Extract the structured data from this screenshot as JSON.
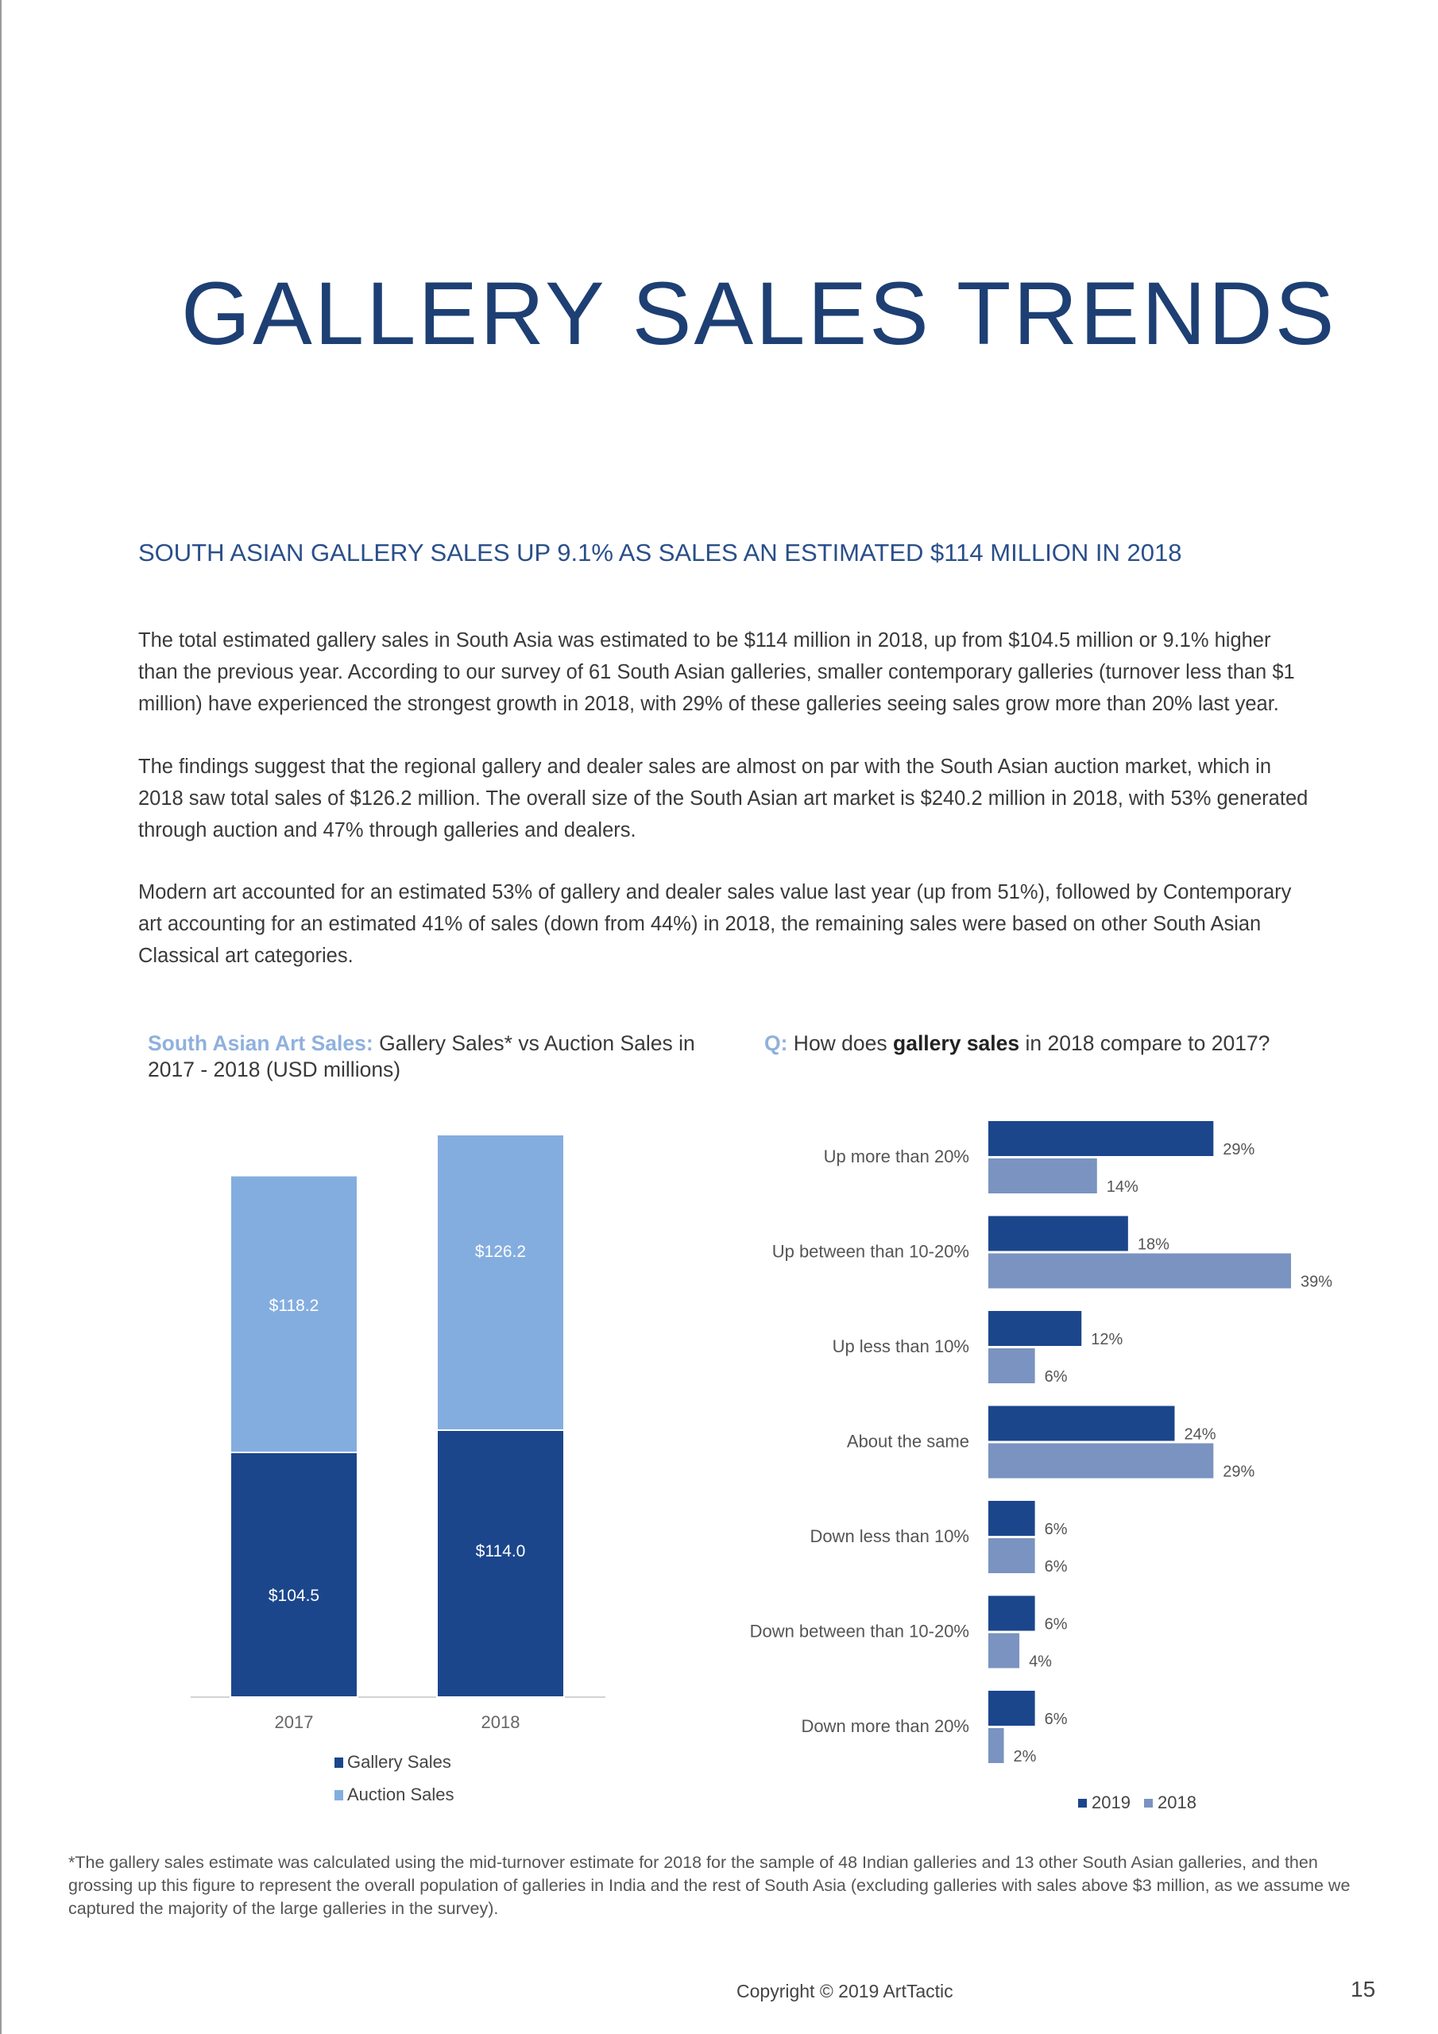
{
  "page": {
    "title": "GALLERY SALES TRENDS",
    "subheading": "SOUTH ASIAN GALLERY SALES UP 9.1% AS SALES AN ESTIMATED $114 MILLION IN 2018",
    "paragraphs": [
      "The total estimated gallery sales in South Asia was estimated to be $114 million in 2018, up from $104.5 million or 9.1% higher than the previous year. According to our survey of 61 South Asian galleries, smaller contemporary galleries (turnover less than $1 million) have experienced the strongest growth in 2018, with 29% of these galleries seeing sales grow more than 20% last year.",
      "The findings suggest that the regional gallery and dealer sales are almost on par with the South Asian auction market, which in 2018 saw total sales of $126.2 million. The overall size of the South Asian art market is $240.2 million in 2018, with 53% generated through auction and 47% through galleries and dealers.",
      "Modern art accounted for an estimated 53% of gallery and dealer sales value last year (up from 51%), followed by Contemporary art accounting for an estimated 41% of sales (down from 44%) in 2018, the remaining sales were based on other South Asian Classical art categories."
    ],
    "footnote": "*The gallery sales estimate was calculated using the mid-turnover estimate for 2018 for the sample of 48 Indian galleries and 13 other South Asian galleries, and then grossing up this figure to represent the overall population of galleries in India and the rest of South Asia (excluding galleries with sales above $3 million, as we assume we captured the majority of the large galleries in the survey).",
    "copyright": "Copyright © 2019 ArtTactic",
    "page_number": "15"
  },
  "chart_titles": {
    "left_accent": "South Asian Art Sales:",
    "left_rest": " Gallery Sales* vs Auction Sales in 2017 - 2018  (USD millions)",
    "right_accent": "Q:",
    "right_pre": " How does ",
    "right_bold": "gallery sales",
    "right_post": " in 2018 compare to 2017?"
  },
  "colors": {
    "title": "#1d3f73",
    "gallery_sales": "#1b468c",
    "auction_sales": "#84addf",
    "series_2019": "#1b468c",
    "series_2018": "#7a93c0"
  },
  "chart_data": [
    {
      "type": "bar",
      "stacked": true,
      "categories": [
        "2017",
        "2018"
      ],
      "series": [
        {
          "name": "Gallery Sales",
          "values": [
            104.5,
            114.0
          ],
          "labels": [
            "$104.5",
            "$114.0"
          ]
        },
        {
          "name": "Auction Sales",
          "values": [
            118.2,
            126.2
          ],
          "labels": [
            "$118.2",
            "$126.2"
          ]
        }
      ],
      "ylim": [
        0,
        240.2
      ],
      "legend": "bottom"
    },
    {
      "type": "bar",
      "orientation": "horizontal",
      "categories": [
        "Up more than 20%",
        "Up between than 10-20%",
        "Up less than 10%",
        "About the same",
        "Down less than 10%",
        "Down between than 10-20%",
        "Down more than 20%"
      ],
      "series": [
        {
          "name": "2019",
          "values": [
            29,
            18,
            12,
            24,
            6,
            6,
            6
          ],
          "labels": [
            "29%",
            "18%",
            "12%",
            "24%",
            "6%",
            "6%",
            "6%"
          ]
        },
        {
          "name": "2018",
          "values": [
            14,
            39,
            6,
            29,
            6,
            4,
            2
          ],
          "labels": [
            "14%",
            "39%",
            "6%",
            "29%",
            "6%",
            "4%",
            "2%"
          ]
        }
      ],
      "xlim": [
        0,
        39
      ],
      "legend": "bottom-right"
    }
  ]
}
